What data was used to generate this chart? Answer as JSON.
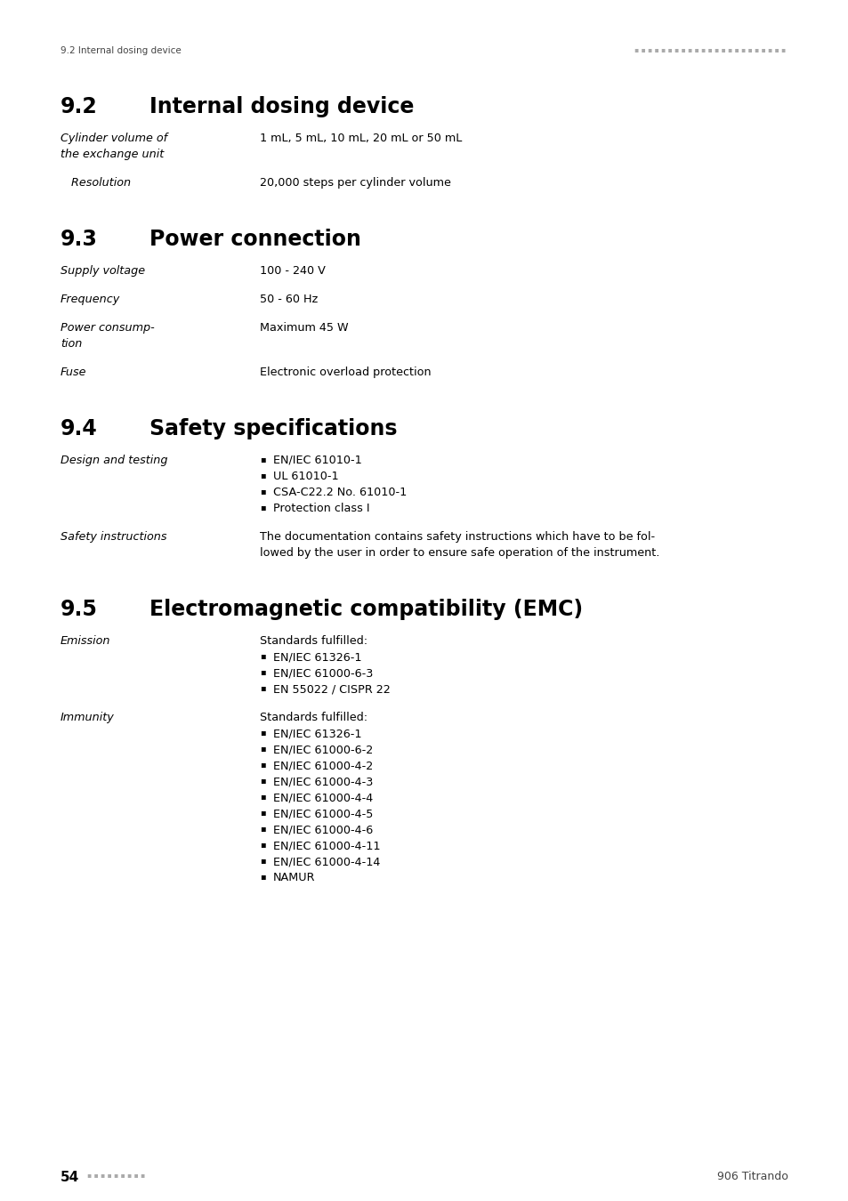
{
  "bg_color": "#ffffff",
  "header_left": "9.2 Internal dosing device",
  "footer_left_num": "54",
  "footer_right": "906 Titrando",
  "sections": [
    {
      "number": "9.2",
      "title": "Internal dosing device",
      "rows": [
        {
          "label": "Cylinder volume of\nthe exchange unit",
          "value": "1 mL, 5 mL, 10 mL, 20 mL or 50 mL",
          "value_top": true
        },
        {
          "label": "   Resolution",
          "value": "20,000 steps per cylinder volume"
        }
      ]
    },
    {
      "number": "9.3",
      "title": "Power connection",
      "rows": [
        {
          "label": "Supply voltage",
          "value": "100 - 240 V"
        },
        {
          "label": "Frequency",
          "value": "50 - 60 Hz"
        },
        {
          "label": "Power consump-\ntion",
          "value": "Maximum 45 W",
          "value_top": true
        },
        {
          "label": "Fuse",
          "value": "Electronic overload protection"
        }
      ]
    },
    {
      "number": "9.4",
      "title": "Safety specifications",
      "rows": [
        {
          "label": "Design and testing",
          "bullets": [
            "EN/IEC 61010-1",
            "UL 61010-1",
            "CSA-C22.2 No. 61010-1",
            "Protection class I"
          ]
        },
        {
          "label": "Safety instructions",
          "value": "The documentation contains safety instructions which have to be fol-\nlowed by the user in order to ensure safe operation of the instrument."
        }
      ]
    },
    {
      "number": "9.5",
      "title": "Electromagnetic compatibility (EMC)",
      "rows": [
        {
          "label": "Emission",
          "value_prefix": "Standards fulfilled:",
          "bullets": [
            "EN/IEC 61326-1",
            "EN/IEC 61000-6-3",
            "EN 55022 / CISPR 22"
          ]
        },
        {
          "label": "Immunity",
          "value_prefix": "Standards fulfilled:",
          "bullets": [
            "EN/IEC 61326-1",
            "EN/IEC 61000-6-2",
            "EN/IEC 61000-4-2",
            "EN/IEC 61000-4-3",
            "EN/IEC 61000-4-4",
            "EN/IEC 61000-4-5",
            "EN/IEC 61000-4-6",
            "EN/IEC 61000-4-11",
            "EN/IEC 61000-4-14",
            "NAMUR"
          ]
        }
      ]
    }
  ]
}
